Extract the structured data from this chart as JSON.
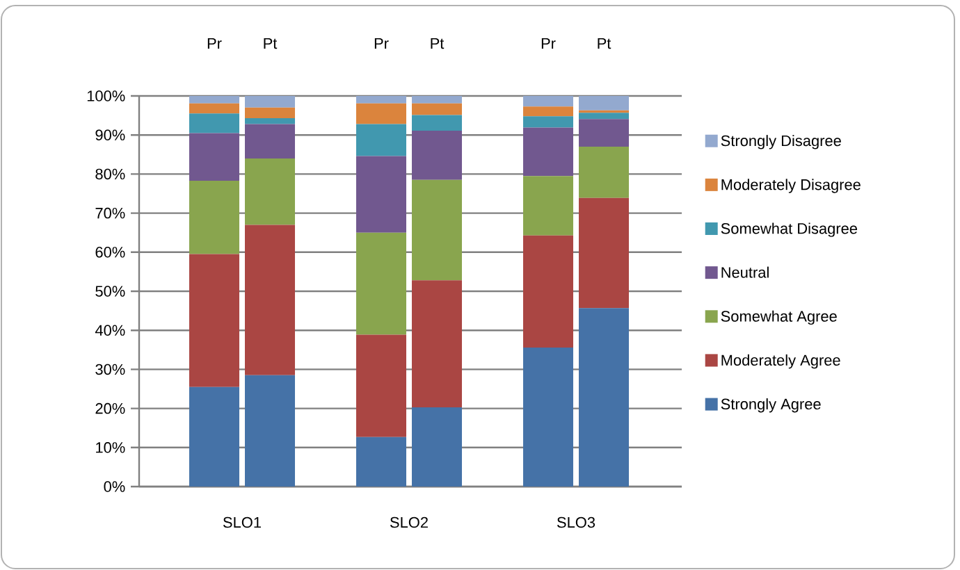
{
  "chart_data": {
    "type": "bar",
    "stacked": true,
    "categories": [
      "Pr",
      "Pt",
      "Pr",
      "Pt",
      "Pr",
      "Pt"
    ],
    "series": [
      {
        "name": "Strongly Agree",
        "color": "#4572a7",
        "values": [
          25.5,
          28.5,
          12.7,
          20.3,
          35.6,
          45.7
        ]
      },
      {
        "name": "Moderately Agree",
        "color": "#aa4643",
        "values": [
          34,
          38.5,
          26.2,
          32.5,
          28.7,
          28.2
        ]
      },
      {
        "name": "Somewhat Agree",
        "color": "#89a54e",
        "values": [
          18.8,
          17,
          26.1,
          25.7,
          15.2,
          13.1
        ]
      },
      {
        "name": "Neutral",
        "color": "#71588f",
        "values": [
          12.2,
          8.8,
          19.6,
          12.6,
          12.4,
          7.1
        ]
      },
      {
        "name": "Somewhat Disagree",
        "color": "#4198af",
        "values": [
          5,
          1.5,
          8.2,
          4,
          2.9,
          1.6
        ]
      },
      {
        "name": "Moderately Disagree",
        "color": "#db843d",
        "values": [
          2.6,
          2.7,
          5.3,
          3,
          2.5,
          0.6
        ]
      },
      {
        "name": "Strongly Disagree",
        "color": "#93a9cf",
        "values": [
          1.9,
          3,
          1.9,
          1.9,
          2.7,
          3.7
        ]
      }
    ],
    "ylim": [
      0,
      100
    ],
    "yticks": [
      {
        "value": 0,
        "label": "0%"
      },
      {
        "value": 10,
        "label": "10%"
      },
      {
        "value": 20,
        "label": "20%"
      },
      {
        "value": 30,
        "label": "30%"
      },
      {
        "value": 40,
        "label": "40%"
      },
      {
        "value": 50,
        "label": "50%"
      },
      {
        "value": 60,
        "label": "60%"
      },
      {
        "value": 70,
        "label": "70%"
      },
      {
        "value": 80,
        "label": "80%"
      },
      {
        "value": 90,
        "label": "90%"
      },
      {
        "value": 100,
        "label": "100%"
      }
    ],
    "grid": "y",
    "legend": "right",
    "annotations": [
      "SLO1",
      "SLO2",
      "SLO3"
    ]
  }
}
